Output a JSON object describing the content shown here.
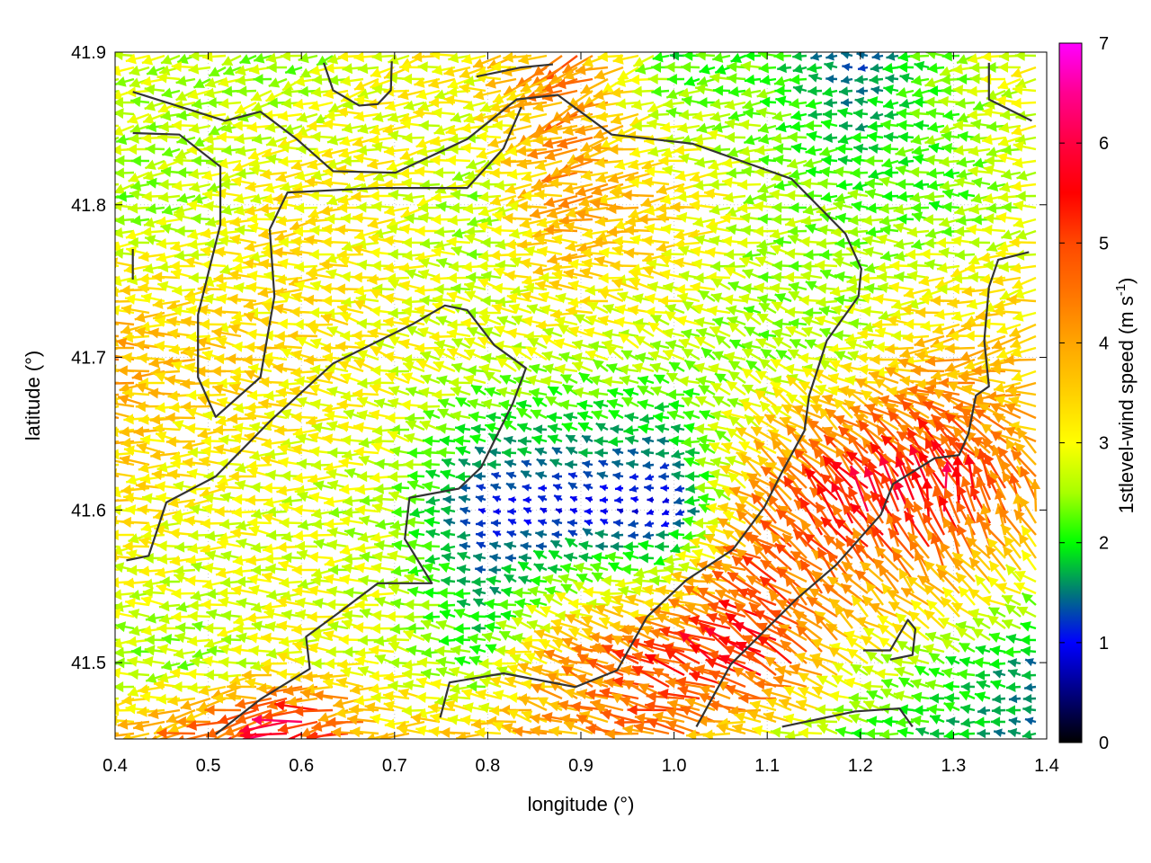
{
  "chart_data": {
    "type": "vector-field",
    "xlabel": "longitude (°)",
    "ylabel": "latitude (°)",
    "colorbar": {
      "label_main": "1stlevel-wind speed (m s",
      "label_sup": "-1",
      "label_end": ")",
      "range": [
        0,
        7
      ],
      "ticks": [
        "0",
        "1",
        "2",
        "3",
        "4",
        "5",
        "6",
        "7"
      ],
      "stops": [
        [
          0,
          "#000000"
        ],
        [
          0.5,
          "#000080"
        ],
        [
          1,
          "#0000ff"
        ],
        [
          1.5,
          "#007878"
        ],
        [
          2,
          "#00ff00"
        ],
        [
          2.5,
          "#a8ff00"
        ],
        [
          3,
          "#ffff00"
        ],
        [
          3.5,
          "#ffd000"
        ],
        [
          4,
          "#ffa500"
        ],
        [
          4.5,
          "#ff7400"
        ],
        [
          5,
          "#ff4800"
        ],
        [
          5.5,
          "#ff0000"
        ],
        [
          6,
          "#ff0040"
        ],
        [
          6.5,
          "#ff0090"
        ],
        [
          7,
          "#ff00ff"
        ]
      ]
    },
    "xlim": [
      0.4,
      1.4
    ],
    "ylim": [
      41.45,
      41.9
    ],
    "xticks": [
      "0.4",
      "0.5",
      "0.6",
      "0.7",
      "0.8",
      "0.9",
      "1.0",
      "1.1",
      "1.2",
      "1.3",
      "1.4"
    ],
    "yticks": [
      "41.5",
      "41.6",
      "41.7",
      "41.8",
      "41.9"
    ],
    "grid": true,
    "wind_field_sample": {
      "lon": [
        0.4,
        0.5,
        0.6,
        0.7,
        0.8,
        0.9,
        1.0,
        1.1,
        1.2,
        1.3,
        1.4
      ],
      "lat": [
        41.9,
        41.8,
        41.7,
        41.6,
        41.5,
        41.45
      ],
      "speed_m_s": [
        [
          2.8,
          2.6,
          2.4,
          3.0,
          3.2,
          4.5,
          2.0,
          2.2,
          1.2,
          2.4,
          3.0
        ],
        [
          2.4,
          2.6,
          3.3,
          3.0,
          2.5,
          4.0,
          3.5,
          2.6,
          2.3,
          2.2,
          2.8
        ],
        [
          4.0,
          3.5,
          3.3,
          3.0,
          2.8,
          2.7,
          2.6,
          2.4,
          2.7,
          3.8,
          3.5
        ],
        [
          3.3,
          3.0,
          2.8,
          2.6,
          1.0,
          0.9,
          0.8,
          4.0,
          5.5,
          5.5,
          4.0
        ],
        [
          2.5,
          2.5,
          3.0,
          2.8,
          2.2,
          4.0,
          5.0,
          5.5,
          3.0,
          2.2,
          1.5
        ],
        [
          3.5,
          4.5,
          6.5,
          3.5,
          3.5,
          4.0,
          4.5,
          3.0,
          2.2,
          1.8,
          1.5
        ]
      ],
      "direction_toward_deg_ccw_from_east": [
        [
          190,
          195,
          195,
          190,
          190,
          210,
          185,
          185,
          180,
          185,
          190
        ],
        [
          185,
          185,
          185,
          185,
          185,
          190,
          185,
          185,
          180,
          180,
          185
        ],
        [
          180,
          175,
          170,
          165,
          160,
          160,
          155,
          150,
          170,
          190,
          200
        ],
        [
          180,
          180,
          180,
          180,
          170,
          160,
          200,
          140,
          120,
          100,
          110
        ],
        [
          180,
          180,
          175,
          175,
          170,
          160,
          160,
          150,
          150,
          160,
          180
        ],
        [
          185,
          200,
          200,
          180,
          175,
          165,
          170,
          175,
          175,
          180,
          180
        ]
      ]
    },
    "coastlines": [
      [
        [
          0.419,
          41.874
        ],
        [
          0.518,
          41.855
        ],
        [
          0.556,
          41.861
        ],
        [
          0.595,
          41.843
        ],
        [
          0.634,
          41.822
        ],
        [
          0.701,
          41.821
        ],
        [
          0.778,
          41.843
        ],
        [
          0.831,
          41.869
        ],
        [
          0.875,
          41.872
        ],
        [
          0.933,
          41.846
        ],
        [
          1.02,
          41.84
        ],
        [
          1.126,
          41.817
        ],
        [
          1.184,
          41.781
        ],
        [
          1.201,
          41.758
        ],
        [
          1.198,
          41.74
        ],
        [
          1.164,
          41.711
        ],
        [
          1.145,
          41.675
        ],
        [
          1.14,
          41.652
        ],
        [
          1.116,
          41.625
        ],
        [
          1.097,
          41.602
        ],
        [
          1.063,
          41.574
        ],
        [
          1.013,
          41.554
        ],
        [
          0.971,
          41.53
        ],
        [
          0.939,
          41.495
        ],
        [
          0.894,
          41.484
        ],
        [
          0.817,
          41.493
        ],
        [
          0.759,
          41.487
        ],
        [
          0.749,
          41.464
        ]
      ],
      [
        [
          0.419,
          41.847
        ],
        [
          0.469,
          41.846
        ],
        [
          0.513,
          41.825
        ],
        [
          0.513,
          41.787
        ],
        [
          0.489,
          41.728
        ],
        [
          0.489,
          41.687
        ],
        [
          0.508,
          41.661
        ],
        [
          0.556,
          41.687
        ],
        [
          0.571,
          41.74
        ],
        [
          0.566,
          41.784
        ],
        [
          0.585,
          41.808
        ],
        [
          0.682,
          41.811
        ],
        [
          0.778,
          41.811
        ],
        [
          0.817,
          41.837
        ],
        [
          0.836,
          41.864
        ]
      ],
      [
        [
          1.381,
          41.769
        ],
        [
          1.348,
          41.764
        ],
        [
          1.338,
          41.746
        ],
        [
          1.333,
          41.711
        ],
        [
          1.338,
          41.681
        ],
        [
          1.324,
          41.675
        ],
        [
          1.316,
          41.65
        ],
        [
          1.306,
          41.636
        ],
        [
          1.28,
          41.634
        ],
        [
          1.235,
          41.617
        ],
        [
          1.222,
          41.597
        ],
        [
          1.174,
          41.564
        ],
        [
          1.132,
          41.542
        ],
        [
          1.061,
          41.499
        ],
        [
          1.024,
          41.458
        ]
      ],
      [
        [
          0.412,
          41.567
        ],
        [
          0.436,
          41.57
        ],
        [
          0.455,
          41.605
        ],
        [
          0.508,
          41.622
        ],
        [
          0.566,
          41.658
        ],
        [
          0.634,
          41.696
        ],
        [
          0.72,
          41.722
        ],
        [
          0.754,
          41.734
        ],
        [
          0.778,
          41.731
        ],
        [
          0.807,
          41.708
        ],
        [
          0.841,
          41.693
        ],
        [
          0.827,
          41.67
        ],
        [
          0.793,
          41.628
        ],
        [
          0.769,
          41.614
        ],
        [
          0.716,
          41.608
        ],
        [
          0.711,
          41.581
        ],
        [
          0.74,
          41.552
        ],
        [
          0.682,
          41.552
        ],
        [
          0.643,
          41.534
        ],
        [
          0.605,
          41.517
        ],
        [
          0.609,
          41.496
        ],
        [
          0.556,
          41.476
        ],
        [
          0.508,
          41.453
        ]
      ],
      [
        [
          0.624,
          41.893
        ],
        [
          0.634,
          41.875
        ],
        [
          0.662,
          41.865
        ],
        [
          0.682,
          41.866
        ],
        [
          0.696,
          41.875
        ],
        [
          0.697,
          41.894
        ]
      ],
      [
        [
          0.788,
          41.884
        ],
        [
          0.836,
          41.89
        ],
        [
          0.87,
          41.892
        ]
      ],
      [
        [
          1.338,
          41.893
        ],
        [
          1.338,
          41.869
        ],
        [
          1.384,
          41.855
        ]
      ],
      [
        [
          1.203,
          41.508
        ],
        [
          1.232,
          41.508
        ],
        [
          1.251,
          41.528
        ],
        [
          1.259,
          41.522
        ],
        [
          1.256,
          41.505
        ],
        [
          1.232,
          41.502
        ]
      ],
      [
        [
          1.116,
          41.458
        ],
        [
          1.194,
          41.468
        ],
        [
          1.242,
          41.47
        ],
        [
          1.256,
          41.458
        ]
      ],
      [
        [
          0.419,
          41.771
        ],
        [
          0.419,
          41.751
        ]
      ]
    ]
  }
}
